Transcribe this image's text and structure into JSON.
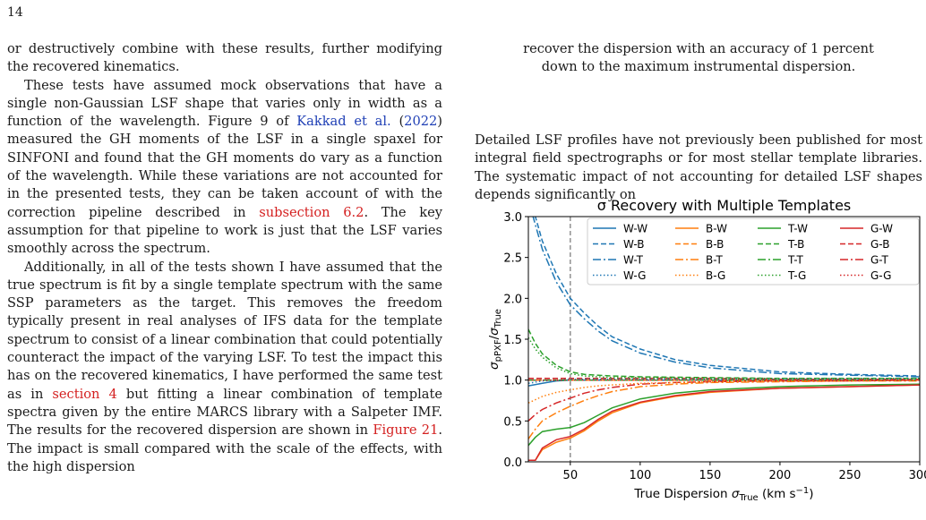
{
  "page_number": "14",
  "left_column": {
    "p1": "or destructively combine with these results, further modifying the recovered kinematics.",
    "p2_a": "These tests have assumed mock observations that have a single non-Gaussian LSF shape that varies only in width as a function of the wavelength. Figure 9 of ",
    "p2_ref": "Kakkad et al.",
    "p2_b": " (",
    "p2_year": "2022",
    "p2_c": ") measured the GH moments of the LSF in a single spaxel for SINFONI and found that the GH moments do vary as a function of the wavelength. While these variations are not accounted for in the presented tests, they can be taken account of with the correction pipeline described in ",
    "p2_sec": "subsection 6.2",
    "p2_d": ". The key assumption for that pipeline to work is just that the LSF varies smoothly across the spectrum.",
    "p3_a": "Additionally, in all of the tests shown I have assumed that the true spectrum is fit by a single template spectrum with the same SSP parameters as the target. This removes the freedom typically present in real analyses of IFS data for the template spectrum to consist of a linear combination that could potentially counteract the impact of the varying LSF. To test the impact this has on the recovered kinematics, I have performed the same test as in ",
    "p3_sec": "section 4",
    "p3_b": " but fitting a linear combination of template spectra given by the entire MARCS library with a Salpeter IMF. The results for the recovered dispersion are shown in ",
    "p3_fig": "Figure 21",
    "p3_c": ". The impact is small compared with the scale of the effects, with the high dispersion"
  },
  "right_column": {
    "quote_l1": "recover the dispersion with an accuracy of 1 percent",
    "quote_l2": "down to the maximum instrumental dispersion.",
    "para": "Detailed LSF profiles have not previously been published for most integral field spectrographs or for most stellar template libraries. The systematic impact of not accounting for detailed LSF shapes depends significantly on"
  },
  "chart_data": {
    "type": "line",
    "title": "σ Recovery with Multiple Templates",
    "xlabel": "True Dispersion σTrue (km s−1)",
    "ylabel": "σpPXF/σTrue",
    "xlim": [
      20,
      300
    ],
    "ylim": [
      0,
      3.0
    ],
    "xticks": [
      50,
      100,
      150,
      200,
      250,
      300
    ],
    "yticks": [
      0.0,
      0.5,
      1.0,
      1.5,
      2.0,
      2.5,
      3.0
    ],
    "vline_x": 50,
    "hline_y": 1.0,
    "legend_position": "top-right",
    "colors": {
      "W": "#1f77b4",
      "B": "#ff7f0e",
      "T": "#2ca02c",
      "G": "#d62728"
    },
    "series": [
      {
        "name": "W-W",
        "color": "#1f77b4",
        "style": "solid",
        "x": [
          20,
          30,
          40,
          50,
          60,
          80,
          100,
          150,
          200,
          250,
          300
        ],
        "y": [
          0.93,
          0.96,
          0.99,
          1.0,
          1.0,
          1.0,
          1.0,
          1.0,
          1.0,
          1.0,
          1.0
        ]
      },
      {
        "name": "B-W",
        "color": "#ff7f0e",
        "style": "solid",
        "x": [
          20,
          25,
          30,
          40,
          50,
          60,
          70,
          80,
          100,
          125,
          150,
          200,
          250,
          300
        ],
        "y": [
          0.02,
          0.02,
          0.15,
          0.24,
          0.29,
          0.38,
          0.5,
          0.6,
          0.72,
          0.8,
          0.85,
          0.9,
          0.92,
          0.94
        ]
      },
      {
        "name": "T-W",
        "color": "#2ca02c",
        "style": "solid",
        "x": [
          20,
          25,
          30,
          40,
          50,
          60,
          70,
          80,
          100,
          125,
          150,
          200,
          250,
          300
        ],
        "y": [
          0.2,
          0.3,
          0.37,
          0.4,
          0.42,
          0.48,
          0.57,
          0.66,
          0.77,
          0.84,
          0.88,
          0.92,
          0.94,
          0.95
        ]
      },
      {
        "name": "G-W",
        "color": "#d62728",
        "style": "solid",
        "x": [
          20,
          25,
          30,
          40,
          50,
          60,
          70,
          80,
          100,
          125,
          150,
          200,
          250,
          300
        ],
        "y": [
          0.02,
          0.02,
          0.17,
          0.27,
          0.31,
          0.4,
          0.52,
          0.62,
          0.73,
          0.81,
          0.86,
          0.9,
          0.92,
          0.94
        ]
      },
      {
        "name": "W-B",
        "color": "#1f77b4",
        "style": "dashed",
        "x": [
          20,
          25,
          30,
          40,
          50,
          60,
          70,
          80,
          100,
          125,
          150,
          200,
          250,
          300
        ],
        "y": [
          3.3,
          3.0,
          2.7,
          2.3,
          2.0,
          1.82,
          1.66,
          1.53,
          1.38,
          1.25,
          1.18,
          1.1,
          1.07,
          1.05
        ]
      },
      {
        "name": "B-B",
        "color": "#ff7f0e",
        "style": "dashed",
        "x": [
          20,
          50,
          100,
          150,
          200,
          250,
          300
        ],
        "y": [
          1.0,
          1.0,
          1.0,
          1.0,
          1.0,
          1.0,
          1.0
        ]
      },
      {
        "name": "T-B",
        "color": "#2ca02c",
        "style": "dashed",
        "x": [
          20,
          25,
          30,
          40,
          50,
          60,
          70,
          80,
          100,
          150,
          200,
          250,
          300
        ],
        "y": [
          1.62,
          1.45,
          1.32,
          1.18,
          1.1,
          1.07,
          1.06,
          1.05,
          1.04,
          1.03,
          1.02,
          1.02,
          1.02
        ]
      },
      {
        "name": "G-B",
        "color": "#d62728",
        "style": "dashed",
        "x": [
          20,
          50,
          100,
          150,
          200,
          250,
          300
        ],
        "y": [
          1.02,
          1.02,
          1.02,
          1.02,
          1.01,
          1.01,
          1.01
        ]
      },
      {
        "name": "W-T",
        "color": "#1f77b4",
        "style": "dashdot",
        "x": [
          20,
          25,
          30,
          40,
          50,
          60,
          70,
          80,
          100,
          125,
          150,
          200,
          250,
          300
        ],
        "y": [
          3.2,
          2.9,
          2.6,
          2.2,
          1.92,
          1.75,
          1.6,
          1.48,
          1.33,
          1.22,
          1.15,
          1.08,
          1.06,
          1.04
        ]
      },
      {
        "name": "B-T",
        "color": "#ff7f0e",
        "style": "dashdot",
        "x": [
          20,
          25,
          30,
          40,
          50,
          60,
          70,
          80,
          100,
          125,
          150,
          200,
          250,
          300
        ],
        "y": [
          0.28,
          0.4,
          0.5,
          0.6,
          0.68,
          0.75,
          0.81,
          0.86,
          0.92,
          0.95,
          0.97,
          0.98,
          0.99,
          0.99
        ]
      },
      {
        "name": "T-T",
        "color": "#2ca02c",
        "style": "dashdot",
        "x": [
          20,
          50,
          100,
          150,
          200,
          250,
          300
        ],
        "y": [
          1.0,
          1.0,
          1.0,
          1.0,
          1.0,
          1.0,
          1.0
        ]
      },
      {
        "name": "G-T",
        "color": "#d62728",
        "style": "dashdot",
        "x": [
          20,
          25,
          30,
          40,
          50,
          60,
          70,
          80,
          100,
          125,
          150,
          200,
          250,
          300
        ],
        "y": [
          0.5,
          0.58,
          0.64,
          0.72,
          0.78,
          0.84,
          0.88,
          0.91,
          0.95,
          0.97,
          0.98,
          0.99,
          0.99,
          1.0
        ]
      },
      {
        "name": "W-G",
        "color": "#1f77b4",
        "style": "dotted",
        "x": [
          20,
          30,
          40,
          50,
          70,
          100,
          150,
          200,
          250,
          300
        ],
        "y": [
          0.96,
          0.99,
          1.0,
          1.01,
          1.01,
          1.01,
          1.01,
          1.01,
          1.01,
          1.01
        ]
      },
      {
        "name": "B-G",
        "color": "#ff7f0e",
        "style": "dotted",
        "x": [
          20,
          25,
          30,
          40,
          50,
          60,
          70,
          80,
          100,
          125,
          150,
          200,
          250,
          300
        ],
        "y": [
          0.72,
          0.76,
          0.8,
          0.85,
          0.88,
          0.91,
          0.93,
          0.94,
          0.96,
          0.97,
          0.98,
          0.99,
          0.99,
          1.0
        ]
      },
      {
        "name": "T-G",
        "color": "#2ca02c",
        "style": "dotted",
        "x": [
          20,
          25,
          30,
          40,
          50,
          60,
          70,
          80,
          100,
          150,
          200,
          250,
          300
        ],
        "y": [
          1.52,
          1.38,
          1.28,
          1.15,
          1.08,
          1.05,
          1.04,
          1.03,
          1.03,
          1.02,
          1.02,
          1.02,
          1.02
        ]
      },
      {
        "name": "G-G",
        "color": "#d62728",
        "style": "dotted",
        "x": [
          20,
          50,
          100,
          150,
          200,
          250,
          300
        ],
        "y": [
          1.0,
          1.0,
          1.0,
          1.0,
          1.0,
          1.0,
          1.0
        ]
      }
    ]
  }
}
